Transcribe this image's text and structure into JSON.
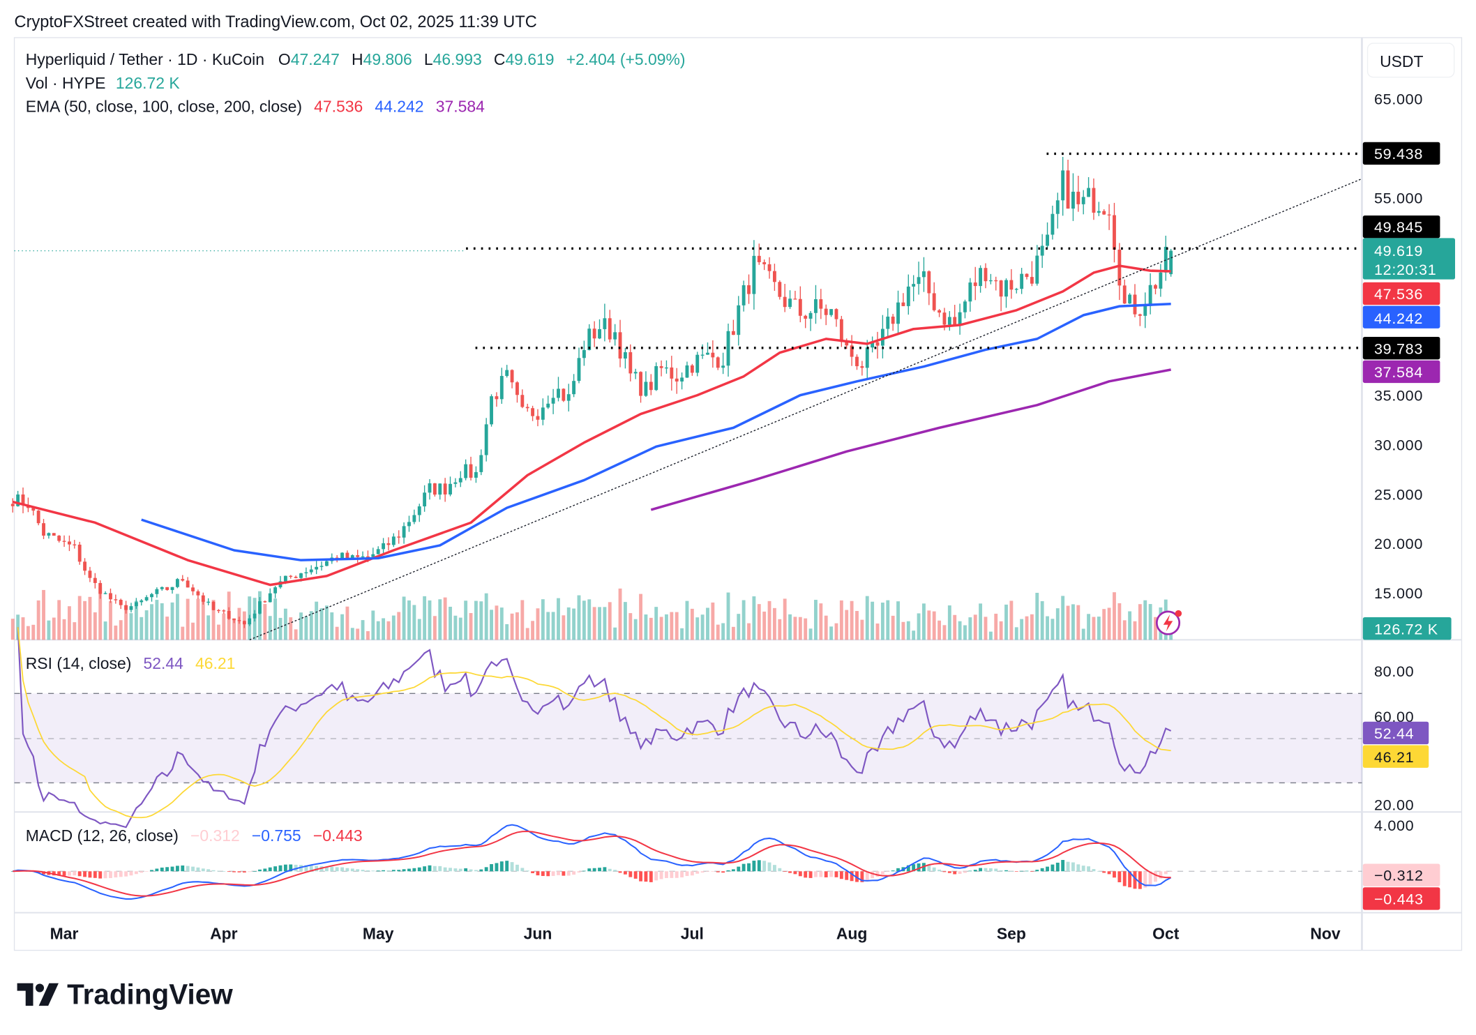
{
  "header": {
    "credit": "CryptoFXStreet created with TradingView.com, Oct 02, 2025 11:39 UTC"
  },
  "legend": {
    "symbol": "Hyperliquid / Tether · 1D · KuCoin",
    "o_label": "O",
    "o": "47.247",
    "h_label": "H",
    "h": "49.806",
    "l_label": "L",
    "l": "46.993",
    "c_label": "C",
    "c": "49.619",
    "change": "+2.404 (+5.09%)",
    "vol_label": "Vol · HYPE",
    "vol": "126.72 K",
    "ema_label": "EMA (50, close, 100, close, 200, close)",
    "ema50": "47.536",
    "ema100": "44.242",
    "ema200": "37.584",
    "rsi_label": "RSI (14, close)",
    "rsi": "52.44",
    "rsi_ma": "46.21",
    "macd_label": "MACD (12, 26, close)",
    "macd_hist": "−0.312",
    "macd": "−0.755",
    "macd_signal": "−0.443"
  },
  "price_axis": {
    "currency": "USDT",
    "ticks": [
      "65.000",
      "55.000",
      "35.000",
      "30.000",
      "25.000",
      "20.000",
      "15.000"
    ],
    "tick_values": [
      65,
      55,
      35,
      30,
      25,
      20,
      15
    ],
    "tags": {
      "high": "59.438",
      "resistance": "49.845",
      "last": "49.619",
      "countdown": "12:20:31",
      "ema50": "47.536",
      "ema100": "44.242",
      "support": "39.783",
      "ema200": "37.584",
      "volume": "126.72 K"
    }
  },
  "rsi_axis": {
    "ticks": [
      "80.00",
      "60.00",
      "20.00"
    ],
    "tag_rsi": "52.44",
    "tag_ma": "46.21"
  },
  "macd_axis": {
    "ticks": [
      "4.000"
    ],
    "tag_hist": "−0.312",
    "tag_signal": "−0.443"
  },
  "time_axis": {
    "labels": [
      "Mar",
      "Apr",
      "May",
      "Jun",
      "Jul",
      "Aug",
      "Sep",
      "Oct",
      "Nov"
    ]
  },
  "logo": {
    "text": "TradingView"
  },
  "colors": {
    "up": "#26a69a",
    "down": "#ef5350",
    "ema50": "#f23645",
    "ema100": "#2962ff",
    "ema200": "#9c27b0",
    "rsi": "#7e57c2",
    "rsi_ma": "#fdd835"
  },
  "chart_data": {
    "type": "candlestick",
    "title": "Hyperliquid / Tether · 1D · KuCoin",
    "ylim": [
      10,
      67
    ],
    "grid": false,
    "last_candle": {
      "date": "Oct 2",
      "open": 47.247,
      "high": 49.806,
      "low": 46.993,
      "close": 49.619
    },
    "horizontal_levels": [
      59.438,
      49.845,
      39.783
    ],
    "approx_closes": [
      [
        "Feb 19",
        24.5
      ],
      [
        "Feb 22",
        24.0
      ],
      [
        "Feb 25",
        21.0
      ],
      [
        "Feb 28",
        20.2
      ],
      [
        "Mar 3",
        19.5
      ],
      [
        "Mar 6",
        16.3
      ],
      [
        "Mar 9",
        14.8
      ],
      [
        "Mar 12",
        13.5
      ],
      [
        "Mar 15",
        13.7
      ],
      [
        "Mar 18",
        14.8
      ],
      [
        "Mar 21",
        15.4
      ],
      [
        "Mar 24",
        16.4
      ],
      [
        "Mar 27",
        14.8
      ],
      [
        "Mar 30",
        13.2
      ],
      [
        "Apr 2",
        12.7
      ],
      [
        "Apr 5",
        11.8
      ],
      [
        "Apr 8",
        13.8
      ],
      [
        "Apr 11",
        15.7
      ],
      [
        "Apr 14",
        16.6
      ],
      [
        "Apr 17",
        17.3
      ],
      [
        "Apr 20",
        17.9
      ],
      [
        "Apr 23",
        18.7
      ],
      [
        "Apr 26",
        18.4
      ],
      [
        "Apr 29",
        18.6
      ],
      [
        "May 2",
        19.5
      ],
      [
        "May 5",
        20.9
      ],
      [
        "May 8",
        23.1
      ],
      [
        "May 11",
        25.5
      ],
      [
        "May 14",
        25.6
      ],
      [
        "May 17",
        27.3
      ],
      [
        "May 20",
        27.0
      ],
      [
        "May 23",
        34.7
      ],
      [
        "May 26",
        36.7
      ],
      [
        "May 29",
        33.0
      ],
      [
        "Jun 1",
        33.5
      ],
      [
        "Jun 4",
        35.8
      ],
      [
        "Jun 7",
        34.6
      ],
      [
        "Jun 10",
        40.2
      ],
      [
        "Jun 13",
        42.0
      ],
      [
        "Jun 16",
        41.4
      ],
      [
        "Jun 19",
        36.9
      ],
      [
        "Jun 22",
        35.5
      ],
      [
        "Jun 25",
        37.6
      ],
      [
        "Jun 28",
        37.0
      ],
      [
        "Jul 1",
        38.3
      ],
      [
        "Jul 4",
        38.8
      ],
      [
        "Jul 7",
        38.9
      ],
      [
        "Jul 10",
        43.6
      ],
      [
        "Jul 13",
        48.0
      ],
      [
        "Jul 16",
        46.3
      ],
      [
        "Jul 19",
        44.6
      ],
      [
        "Jul 22",
        43.3
      ],
      [
        "Jul 25",
        43.7
      ],
      [
        "Jul 28",
        43.4
      ],
      [
        "Jul 31",
        39.5
      ],
      [
        "Aug 3",
        38.2
      ],
      [
        "Aug 6",
        39.7
      ],
      [
        "Aug 9",
        43.0
      ],
      [
        "Aug 12",
        46.0
      ],
      [
        "Aug 15",
        46.3
      ],
      [
        "Aug 18",
        43.5
      ],
      [
        "Aug 21",
        42.0
      ],
      [
        "Aug 24",
        45.7
      ],
      [
        "Aug 27",
        47.9
      ],
      [
        "Aug 30",
        45.8
      ],
      [
        "Sep 2",
        46.5
      ],
      [
        "Sep 5",
        47.5
      ],
      [
        "Sep 8",
        50.0
      ],
      [
        "Sep 11",
        56.2
      ],
      [
        "Sep 14",
        54.0
      ],
      [
        "Sep 17",
        55.0
      ],
      [
        "Sep 20",
        54.5
      ],
      [
        "Sep 23",
        44.0
      ],
      [
        "Sep 26",
        44.0
      ],
      [
        "Sep 29",
        46.5
      ],
      [
        "Oct 2",
        49.619
      ]
    ],
    "ema50": [
      [
        "Feb 19",
        24.2
      ],
      [
        "Mar 7",
        22.1
      ],
      [
        "Mar 25",
        18.3
      ],
      [
        "Apr 10",
        15.8
      ],
      [
        "Apr 21",
        16.7
      ],
      [
        "May 4",
        19.3
      ],
      [
        "May 19",
        22.1
      ],
      [
        "May 30",
        26.9
      ],
      [
        "Jun 10",
        30.2
      ],
      [
        "Jun 21",
        33.1
      ],
      [
        "Jul 2",
        35.0
      ],
      [
        "Jul 11",
        36.9
      ],
      [
        "Jul 18",
        39.3
      ],
      [
        "Jul 27",
        40.7
      ],
      [
        "Aug 4",
        40.2
      ],
      [
        "Aug 13",
        41.7
      ],
      [
        "Aug 22",
        42.1
      ],
      [
        "Sep 2",
        43.6
      ],
      [
        "Sep 11",
        45.5
      ],
      [
        "Sep 17",
        47.4
      ],
      [
        "Sep 22",
        48.1
      ],
      [
        "Sep 28",
        47.6
      ],
      [
        "Oct 2",
        47.536
      ]
    ],
    "ema100": [
      [
        "Mar 16",
        22.4
      ],
      [
        "Apr 3",
        19.3
      ],
      [
        "Apr 16",
        18.3
      ],
      [
        "May 1",
        18.5
      ],
      [
        "May 13",
        19.8
      ],
      [
        "May 26",
        23.6
      ],
      [
        "Jun 10",
        26.4
      ],
      [
        "Jun 24",
        29.8
      ],
      [
        "Jul 9",
        31.7
      ],
      [
        "Jul 22",
        35.0
      ],
      [
        "Aug 2",
        36.4
      ],
      [
        "Aug 15",
        37.9
      ],
      [
        "Aug 27",
        39.6
      ],
      [
        "Sep 6",
        40.7
      ],
      [
        "Sep 15",
        43.1
      ],
      [
        "Sep 22",
        44.0
      ],
      [
        "Oct 2",
        44.242
      ]
    ],
    "ema200": [
      [
        "Jun 23",
        23.4
      ],
      [
        "Jul 13",
        26.4
      ],
      [
        "Jul 31",
        29.3
      ],
      [
        "Aug 18",
        31.7
      ],
      [
        "Sep 6",
        34.0
      ],
      [
        "Sep 20",
        36.4
      ],
      [
        "Oct 2",
        37.584
      ]
    ],
    "rsi": {
      "period": 14,
      "overbought": 70,
      "middle": 50,
      "oversold": 30,
      "last": 52.44,
      "ma_last": 46.21
    },
    "macd": {
      "fast": 12,
      "slow": 26,
      "last_macd": -0.755,
      "last_signal": -0.443,
      "last_hist": -0.312
    }
  }
}
